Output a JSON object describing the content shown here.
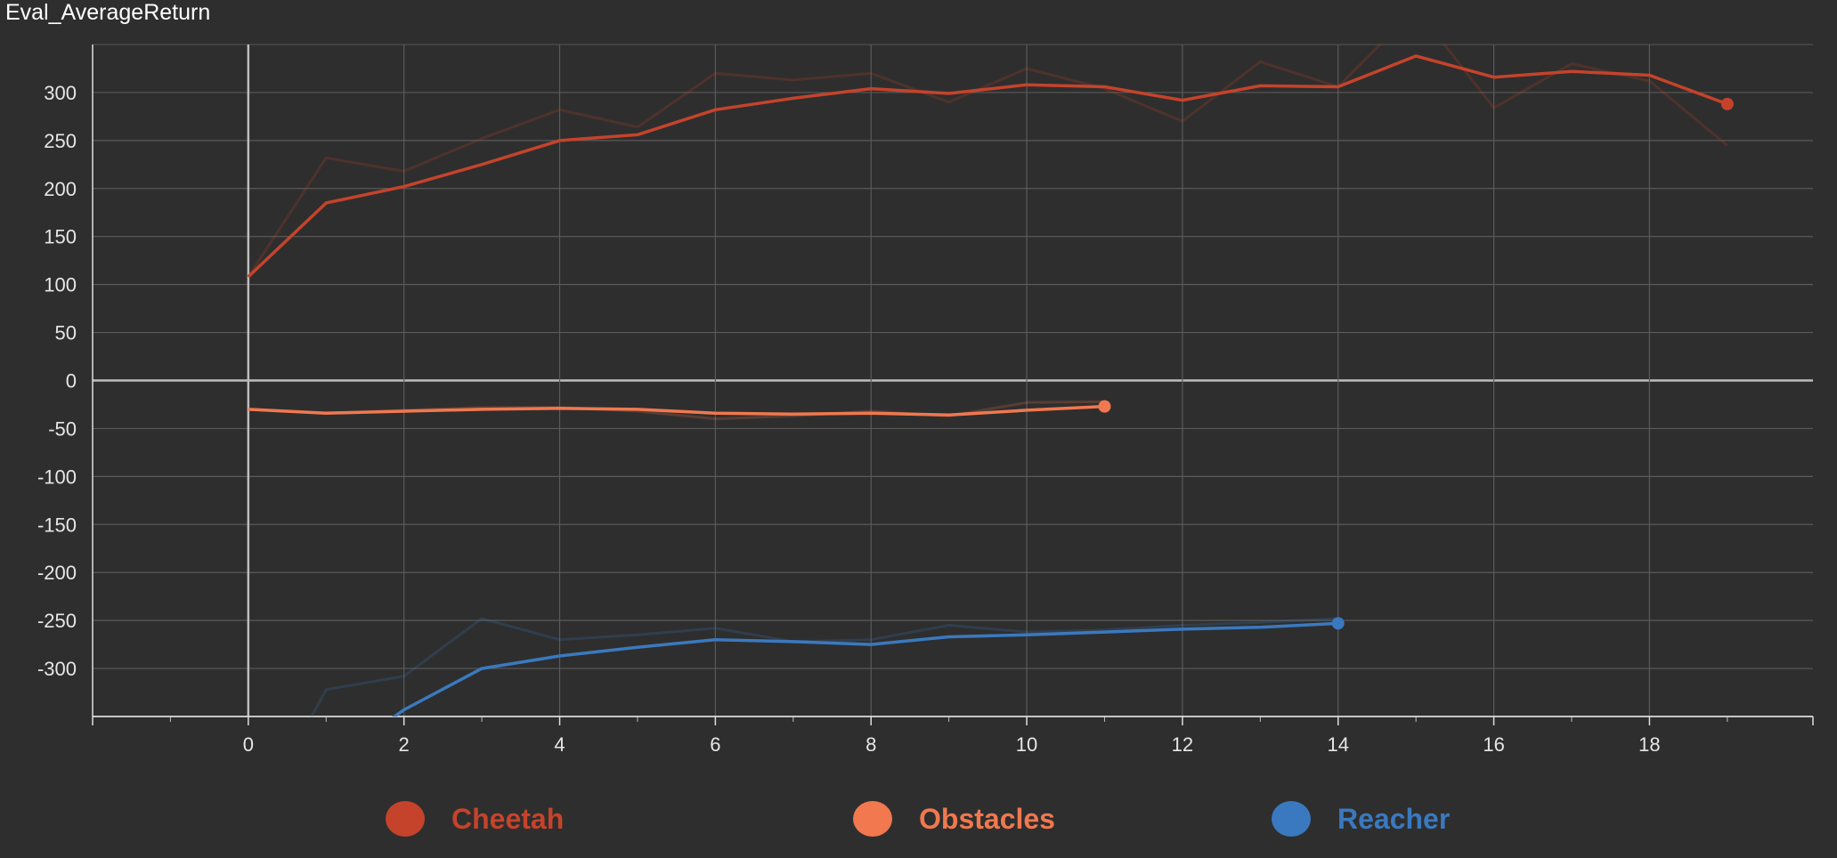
{
  "chart_data": {
    "type": "line",
    "title": "Eval_AverageReturn",
    "xlabel": "",
    "ylabel": "",
    "xlim": [
      -2,
      20.1
    ],
    "ylim": [
      -350,
      350
    ],
    "x_ticks": [
      0,
      2,
      4,
      6,
      8,
      10,
      12,
      14,
      16,
      18
    ],
    "y_ticks": [
      300,
      250,
      200,
      150,
      100,
      50,
      0,
      -50,
      -100,
      -150,
      -200,
      -250,
      -300
    ],
    "grid": true,
    "legend_position": "bottom",
    "series": [
      {
        "name": "Cheetah",
        "color": "#c5432b",
        "smoothed": [
          [
            0,
            108
          ],
          [
            1,
            185
          ],
          [
            2,
            202
          ],
          [
            3,
            225
          ],
          [
            4,
            250
          ],
          [
            5,
            256
          ],
          [
            6,
            282
          ],
          [
            7,
            294
          ],
          [
            8,
            304
          ],
          [
            9,
            299
          ],
          [
            10,
            308
          ],
          [
            11,
            306
          ],
          [
            12,
            292
          ],
          [
            13,
            307
          ],
          [
            14,
            306
          ],
          [
            15,
            338
          ],
          [
            16,
            316
          ],
          [
            17,
            322
          ],
          [
            18,
            318
          ],
          [
            19,
            288
          ]
        ],
        "raw": [
          [
            0,
            108
          ],
          [
            1,
            232
          ],
          [
            2,
            218
          ],
          [
            3,
            252
          ],
          [
            4,
            282
          ],
          [
            5,
            264
          ],
          [
            6,
            320
          ],
          [
            7,
            313
          ],
          [
            8,
            320
          ],
          [
            9,
            290
          ],
          [
            10,
            325
          ],
          [
            11,
            304
          ],
          [
            12,
            270
          ],
          [
            13,
            332
          ],
          [
            14,
            306
          ],
          [
            15,
            388
          ],
          [
            16,
            284
          ],
          [
            17,
            330
          ],
          [
            18,
            312
          ],
          [
            19,
            245
          ]
        ]
      },
      {
        "name": "Obstacles",
        "color": "#f1784f",
        "smoothed": [
          [
            0,
            -30
          ],
          [
            1,
            -34
          ],
          [
            2,
            -32
          ],
          [
            3,
            -30
          ],
          [
            4,
            -29
          ],
          [
            5,
            -30
          ],
          [
            6,
            -34
          ],
          [
            7,
            -35
          ],
          [
            8,
            -34
          ],
          [
            9,
            -36
          ],
          [
            10,
            -31
          ],
          [
            11,
            -27
          ]
        ],
        "raw": [
          [
            0,
            -30
          ],
          [
            1,
            -34
          ],
          [
            2,
            -31
          ],
          [
            3,
            -28
          ],
          [
            4,
            -28
          ],
          [
            5,
            -32
          ],
          [
            6,
            -40
          ],
          [
            7,
            -37
          ],
          [
            8,
            -32
          ],
          [
            9,
            -37
          ],
          [
            10,
            -23
          ],
          [
            11,
            -22
          ]
        ]
      },
      {
        "name": "Reacher",
        "color": "#3a79bf",
        "smoothed": [
          [
            0,
            -470
          ],
          [
            1,
            -400
          ],
          [
            2,
            -343
          ],
          [
            3,
            -300
          ],
          [
            4,
            -287
          ],
          [
            5,
            -278
          ],
          [
            6,
            -270
          ],
          [
            7,
            -272
          ],
          [
            8,
            -275
          ],
          [
            9,
            -267
          ],
          [
            10,
            -265
          ],
          [
            11,
            -262
          ],
          [
            12,
            -259
          ],
          [
            13,
            -257
          ],
          [
            14,
            -253
          ]
        ],
        "raw": [
          [
            0,
            -470
          ],
          [
            1,
            -322
          ],
          [
            2,
            -308
          ],
          [
            3,
            -248
          ],
          [
            4,
            -270
          ],
          [
            5,
            -265
          ],
          [
            6,
            -258
          ],
          [
            7,
            -272
          ],
          [
            8,
            -270
          ],
          [
            9,
            -255
          ],
          [
            10,
            -262
          ],
          [
            11,
            -260
          ],
          [
            12,
            -255
          ],
          [
            13,
            -252
          ],
          [
            14,
            -248
          ]
        ]
      }
    ]
  }
}
